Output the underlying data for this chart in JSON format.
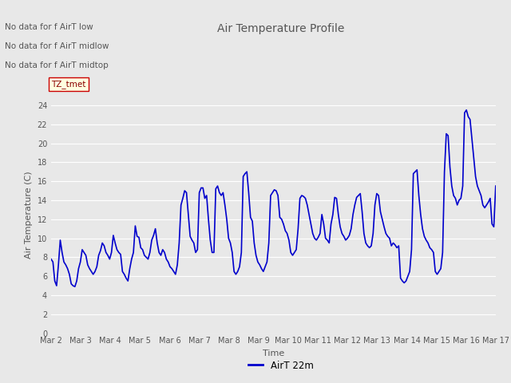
{
  "title": "Air Temperature Profile",
  "xlabel": "Time",
  "ylabel": "Air Temperature (C)",
  "line_color": "#0000CC",
  "line_width": 1.2,
  "ylim": [
    0,
    25
  ],
  "yticks": [
    0,
    2,
    4,
    6,
    8,
    10,
    12,
    14,
    16,
    18,
    20,
    22,
    24
  ],
  "xlim": [
    2,
    17
  ],
  "xtick_positions": [
    2,
    3,
    4,
    5,
    6,
    7,
    8,
    9,
    10,
    11,
    12,
    13,
    14,
    15,
    16,
    17
  ],
  "xtick_labels": [
    "Mar 2",
    "Mar 3",
    "Mar 4",
    "Mar 5",
    "Mar 6",
    "Mar 7",
    "Mar 8",
    "Mar 9",
    "Mar 10",
    "Mar 11",
    "Mar 12",
    "Mar 13",
    "Mar 14",
    "Mar 15",
    "Mar 16",
    "Mar 17"
  ],
  "plot_bg_color": "#e8e8e8",
  "grid_color": "#ffffff",
  "text_color": "#555555",
  "legend_label": "AirT 22m",
  "annotations_text": [
    "No data for f AirT low",
    "No data for f AirT midlow",
    "No data for f AirT midtop"
  ],
  "tmet_box_text": "TZ_tmet",
  "y_values": [
    7.8,
    7.5,
    5.5,
    5.0,
    7.2,
    9.8,
    8.5,
    7.5,
    7.2,
    6.8,
    6.2,
    5.2,
    5.0,
    4.9,
    5.5,
    6.8,
    7.5,
    8.8,
    8.5,
    8.2,
    7.2,
    6.8,
    6.5,
    6.2,
    6.5,
    7.0,
    8.2,
    8.7,
    9.5,
    9.2,
    8.5,
    8.2,
    7.8,
    8.5,
    10.3,
    9.5,
    8.8,
    8.5,
    8.3,
    6.5,
    6.2,
    5.8,
    5.5,
    6.8,
    7.8,
    8.5,
    11.3,
    10.2,
    10.1,
    9.0,
    8.8,
    8.2,
    8.0,
    7.8,
    8.5,
    9.8,
    10.3,
    11.0,
    9.5,
    8.5,
    8.2,
    8.8,
    8.5,
    7.8,
    7.5,
    7.0,
    6.8,
    6.5,
    6.2,
    7.2,
    9.5,
    13.5,
    14.2,
    15.0,
    14.8,
    12.5,
    10.2,
    9.8,
    9.5,
    8.5,
    8.8,
    14.8,
    15.3,
    15.3,
    14.2,
    14.5,
    12.0,
    9.8,
    8.5,
    8.5,
    15.2,
    15.5,
    14.8,
    14.5,
    14.8,
    13.5,
    12.0,
    10.0,
    9.5,
    8.5,
    6.5,
    6.2,
    6.5,
    7.0,
    8.5,
    16.5,
    16.8,
    17.0,
    14.8,
    12.2,
    11.8,
    9.5,
    8.2,
    7.5,
    7.2,
    6.8,
    6.5,
    7.0,
    7.5,
    9.5,
    14.5,
    14.8,
    15.1,
    15.0,
    14.5,
    12.2,
    12.0,
    11.5,
    10.8,
    10.5,
    9.8,
    8.5,
    8.2,
    8.5,
    8.8,
    11.0,
    14.2,
    14.5,
    14.4,
    14.2,
    13.5,
    12.5,
    11.5,
    10.5,
    10.0,
    9.8,
    10.1,
    10.5,
    12.5,
    11.5,
    10.0,
    9.8,
    9.5,
    11.5,
    12.5,
    14.3,
    14.2,
    12.5,
    11.2,
    10.5,
    10.2,
    9.8,
    10.0,
    10.3,
    11.0,
    12.5,
    13.5,
    14.3,
    14.5,
    14.7,
    12.8,
    10.5,
    9.5,
    9.2,
    9.0,
    9.2,
    10.5,
    13.5,
    14.7,
    14.5,
    12.8,
    12.0,
    11.2,
    10.5,
    10.2,
    10.0,
    9.2,
    9.5,
    9.3,
    9.0,
    9.2,
    5.8,
    5.5,
    5.3,
    5.5,
    6.0,
    6.5,
    8.8,
    16.8,
    17.0,
    17.2,
    14.5,
    12.5,
    11.0,
    10.2,
    9.8,
    9.5,
    9.0,
    8.8,
    8.5,
    6.5,
    6.2,
    6.5,
    6.8,
    8.5,
    17.0,
    21.0,
    20.8,
    17.5,
    15.5,
    14.5,
    14.2,
    13.5,
    14.0,
    14.2,
    15.5,
    23.2,
    23.5,
    22.8,
    22.5,
    20.5,
    18.5,
    16.5,
    15.5,
    15.0,
    14.5,
    13.5,
    13.2,
    13.5,
    13.8,
    14.2,
    11.5,
    11.2,
    15.5
  ]
}
